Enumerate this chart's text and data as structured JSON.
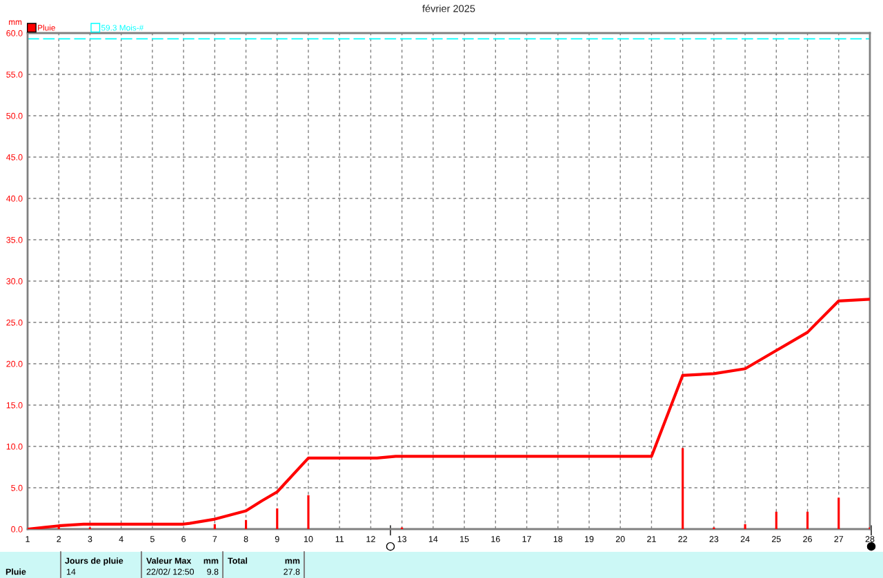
{
  "chart_data": {
    "type": "bar",
    "title": "février 2025",
    "ylabel": "mm",
    "xlim": [
      1,
      28
    ],
    "xticks": [
      1,
      2,
      3,
      4,
      5,
      6,
      7,
      8,
      9,
      10,
      11,
      12,
      13,
      14,
      15,
      16,
      17,
      18,
      19,
      20,
      21,
      22,
      23,
      24,
      25,
      26,
      27,
      28
    ],
    "ylim": [
      0,
      60
    ],
    "yticks": [
      {
        "value": 0,
        "label": "0.0"
      },
      {
        "value": 5,
        "label": "5.0"
      },
      {
        "value": 10,
        "label": "10.0"
      },
      {
        "value": 15,
        "label": "15.0"
      },
      {
        "value": 20,
        "label": "20.0"
      },
      {
        "value": 25,
        "label": "25.0"
      },
      {
        "value": 30,
        "label": "30.0"
      },
      {
        "value": 35,
        "label": "35.0"
      },
      {
        "value": 40,
        "label": "40.0"
      },
      {
        "value": 45,
        "label": "45.0"
      },
      {
        "value": 50,
        "label": "50.0"
      },
      {
        "value": 55,
        "label": "55.0"
      },
      {
        "value": 60,
        "label": "60.0"
      }
    ],
    "series": [
      {
        "name": "Pluie",
        "color": "#ff0000",
        "x": [
          2,
          3,
          7,
          8,
          9,
          10,
          13,
          22,
          23,
          24,
          25,
          26,
          27,
          28
        ],
        "values": [
          0.4,
          0.2,
          0.6,
          1.1,
          2.5,
          4.1,
          0.2,
          9.8,
          0.2,
          0.6,
          2.1,
          2.1,
          3.8,
          0.2
        ]
      },
      {
        "type": "line",
        "color": "#ff0000",
        "x": [
          1,
          2,
          2.8,
          6,
          6.2,
          7,
          7.5,
          8,
          8.5,
          9,
          10,
          12.2,
          12.8,
          21,
          22,
          23,
          24,
          25,
          26,
          27,
          28
        ],
        "values": [
          0,
          0.4,
          0.6,
          0.6,
          0.7,
          1.2,
          1.7,
          2.2,
          3.4,
          4.5,
          8.6,
          8.6,
          8.8,
          8.8,
          18.6,
          18.8,
          19.4,
          21.6,
          23.8,
          27.6,
          27.8
        ]
      }
    ],
    "ref_lines": [
      {
        "axis": "y",
        "value": 59.3,
        "label": "59.3 Mois-#",
        "color": "#00ffff",
        "line_style": "dashed"
      }
    ],
    "grid": true,
    "legend": "top left",
    "annotations": [
      "Jours de pluie",
      "Valeur Max",
      "mm",
      "Total",
      "mm",
      "Pluie",
      "14",
      "22/02/ 12:50",
      "9.8",
      "27.8"
    ]
  }
}
